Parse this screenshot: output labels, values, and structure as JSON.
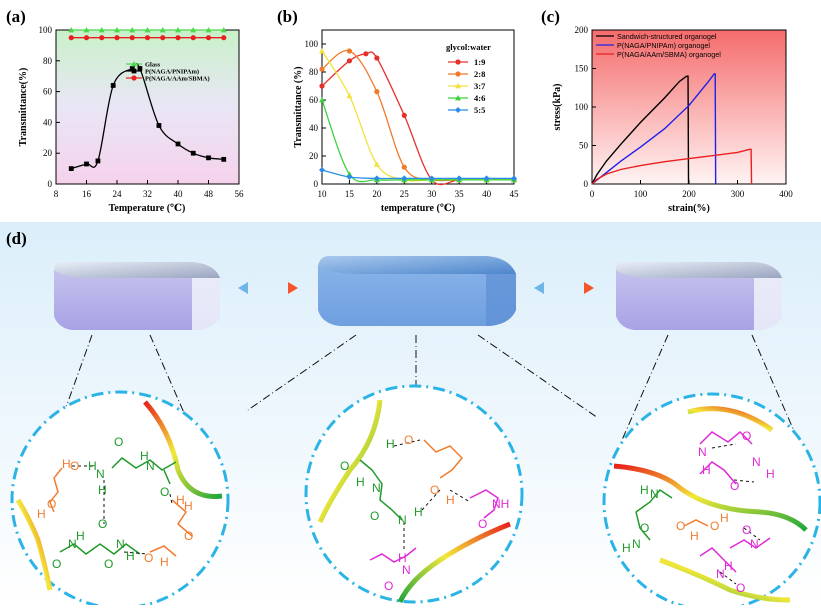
{
  "chart_data": [
    {
      "panel": "(a)",
      "type": "line",
      "xlabel": "Temperature (℃)",
      "ylabel": "Transmittance(%)",
      "xlim": [
        8,
        56
      ],
      "ylim": [
        0,
        100
      ],
      "xticks": [
        8,
        16,
        24,
        32,
        40,
        48,
        56
      ],
      "yticks": [
        0,
        20,
        40,
        60,
        80,
        100
      ],
      "legend": [
        "Glass",
        "P(NAGA/PNIPAm)",
        "P(NAGA/AAm/SBMA)"
      ],
      "series": [
        {
          "name": "Glass",
          "color": "#4cd94c",
          "marker": "triangle",
          "x": [
            12,
            16,
            20,
            24,
            28,
            32,
            36,
            40,
            44,
            48,
            52
          ],
          "y": [
            100,
            100,
            100,
            100,
            100,
            100,
            100,
            100,
            100,
            100,
            100
          ]
        },
        {
          "name": "P(NAGA/AAm/SBMA)",
          "color": "#e62020",
          "marker": "circle",
          "x": [
            12,
            16,
            20,
            24,
            28,
            32,
            36,
            40,
            44,
            48,
            52
          ],
          "y": [
            95,
            95,
            95,
            95,
            95,
            95,
            95,
            95,
            95,
            95,
            95
          ]
        },
        {
          "name": "P(NAGA/PNIPAm)",
          "color": "#000000",
          "marker": "square",
          "x": [
            12,
            16,
            19,
            23,
            28,
            30,
            35,
            40,
            44,
            48,
            52
          ],
          "y": [
            10,
            13,
            15,
            64,
            75,
            75,
            38,
            26,
            20,
            17,
            16
          ]
        }
      ]
    },
    {
      "panel": "(b)",
      "type": "line",
      "xlabel": "temperature (℃)",
      "ylabel": "Transmittance (%)",
      "xlim": [
        10,
        45
      ],
      "ylim": [
        0,
        110
      ],
      "xticks": [
        10,
        15,
        20,
        25,
        30,
        35,
        40,
        45
      ],
      "yticks": [
        0,
        20,
        40,
        60,
        80,
        100
      ],
      "legend_title": "glycol:water",
      "legend": [
        "1:9",
        "2:8",
        "3:7",
        "4:6",
        "5:5"
      ],
      "series": [
        {
          "name": "1:9",
          "color": "#e8302a",
          "marker": "circle",
          "x": [
            10,
            15,
            18,
            20,
            25,
            30,
            35,
            40,
            45
          ],
          "y": [
            70,
            88,
            93,
            90,
            49,
            3,
            3,
            3,
            3
          ]
        },
        {
          "name": "2:8",
          "color": "#f07a2a",
          "marker": "circle",
          "x": [
            10,
            15,
            20,
            25,
            30,
            35,
            40,
            45
          ],
          "y": [
            82,
            95,
            66,
            12,
            3,
            3,
            3,
            3
          ]
        },
        {
          "name": "3:7",
          "color": "#f2e23a",
          "marker": "triangle",
          "x": [
            10,
            15,
            20,
            25,
            30,
            35,
            40,
            45
          ],
          "y": [
            95,
            63,
            14,
            3,
            3,
            3,
            3,
            3
          ]
        },
        {
          "name": "4:6",
          "color": "#3fd23f",
          "marker": "triangle",
          "x": [
            10,
            15,
            20,
            25,
            30,
            35,
            40,
            45
          ],
          "y": [
            60,
            7,
            3,
            3,
            3,
            3,
            3,
            3
          ]
        },
        {
          "name": "5:5",
          "color": "#2a8ce8",
          "marker": "diamond",
          "x": [
            10,
            15,
            20,
            25,
            30,
            35,
            40,
            45
          ],
          "y": [
            10,
            5,
            4,
            4,
            4,
            4,
            4,
            4
          ]
        }
      ]
    },
    {
      "panel": "(c)",
      "type": "line",
      "xlabel": "strain(%)",
      "ylabel": "stress(kPa)",
      "xlim": [
        0,
        400
      ],
      "ylim": [
        0,
        200
      ],
      "xticks": [
        0,
        100,
        200,
        300,
        400
      ],
      "yticks": [
        0,
        50,
        100,
        150,
        200
      ],
      "legend": [
        "Sandwich-structured organogel",
        "P(NAGA/PNIPAm) organogel",
        "P(NAGA/AAm/SBMA) organogel"
      ],
      "series": [
        {
          "name": "Sandwich-structured organogel",
          "color": "#000000",
          "x": [
            0,
            10,
            30,
            60,
            100,
            150,
            180,
            195,
            198,
            199
          ],
          "y": [
            0,
            12,
            30,
            52,
            80,
            112,
            133,
            140,
            140,
            0
          ]
        },
        {
          "name": "P(NAGA/PNIPAm) organogel",
          "color": "#2020e8",
          "x": [
            0,
            20,
            60,
            100,
            150,
            200,
            240,
            252,
            254,
            255
          ],
          "y": [
            0,
            10,
            30,
            48,
            72,
            102,
            133,
            143,
            143,
            0
          ]
        },
        {
          "name": "P(NAGA/AAm/SBMA) organogel",
          "color": "#e82020",
          "x": [
            0,
            10,
            30,
            60,
            100,
            150,
            200,
            250,
            300,
            325,
            328,
            329
          ],
          "y": [
            0,
            6,
            13,
            19,
            24,
            29,
            33,
            37,
            41,
            45,
            45,
            0
          ]
        }
      ]
    }
  ],
  "figure": {
    "label_d": "(d)",
    "colors": {
      "green": "#1f9a2a",
      "orange": "#f07d2f",
      "magenta": "#e02ad8",
      "ring": "#2ab4e6"
    },
    "left_circle": {
      "labels": [
        "H",
        "O",
        "O",
        "H",
        "H",
        "N",
        "H",
        "N",
        "H",
        "O",
        "O",
        "H",
        "H",
        "O",
        "O",
        "O",
        "N",
        "H",
        "N",
        "H",
        "O",
        "O",
        "H"
      ]
    },
    "middle_circle": {
      "labels": [
        "H",
        "O",
        "O",
        "H",
        "O",
        "N",
        "H",
        "O",
        "N",
        "H",
        "NH",
        "O",
        "H",
        "N",
        "O"
      ]
    },
    "right_circle": {
      "labels": [
        "O",
        "N",
        "H",
        "N",
        "O",
        "H",
        "N",
        "H",
        "H",
        "O",
        "O",
        "H",
        "H",
        "N",
        "O",
        "N",
        "O",
        "N",
        "H",
        "O"
      ]
    }
  }
}
